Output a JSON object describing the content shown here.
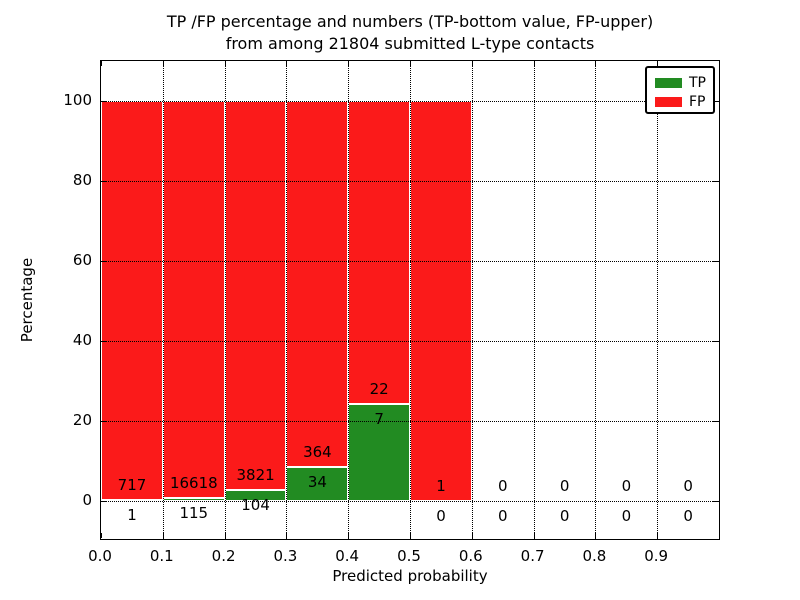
{
  "title": {
    "line1": "TP /FP percentage and numbers (TP-bottom value, FP-upper)",
    "line2": "from among 21804 submitted L-type contacts"
  },
  "axes": {
    "xlabel": "Predicted probability",
    "ylabel": "Percentage",
    "xtick_labels": [
      "0.0",
      "0.1",
      "0.2",
      "0.3",
      "0.4",
      "0.5",
      "0.6",
      "0.7",
      "0.8",
      "0.9"
    ],
    "ytick_labels": [
      "0",
      "20",
      "40",
      "60",
      "80",
      "100"
    ],
    "ytick_values": [
      0,
      20,
      40,
      60,
      80,
      100
    ]
  },
  "legend": {
    "items": [
      {
        "label": "TP",
        "color": "#228b22"
      },
      {
        "label": "FP",
        "color": "#fb1a1a"
      }
    ]
  },
  "chart_data": {
    "type": "bar",
    "stacked": true,
    "title": "TP /FP percentage and numbers (TP-bottom value, FP-upper) from among 21804 submitted L-type contacts",
    "xlabel": "Predicted probability",
    "ylabel": "Percentage",
    "xlim": [
      0.0,
      1.0
    ],
    "ylim": [
      -10,
      110
    ],
    "grid": "dotted",
    "legend_position": "upper right",
    "total_submitted": 21804,
    "bin_width": 0.1,
    "bins": [
      "0.0-0.1",
      "0.1-0.2",
      "0.2-0.3",
      "0.3-0.4",
      "0.4-0.5",
      "0.5-0.6",
      "0.6-0.7",
      "0.7-0.8",
      "0.8-0.9",
      "0.9-1.0"
    ],
    "series": [
      {
        "name": "TP",
        "color": "#228b22",
        "counts": [
          1,
          115,
          104,
          34,
          7,
          0,
          0,
          0,
          0,
          0
        ],
        "percent": [
          0.14,
          0.69,
          2.65,
          8.54,
          24.14,
          0.0,
          0.0,
          0.0,
          0.0,
          0.0
        ]
      },
      {
        "name": "FP",
        "color": "#fb1a1a",
        "counts": [
          717,
          16618,
          3821,
          364,
          22,
          1,
          0,
          0,
          0,
          0
        ],
        "percent": [
          99.86,
          99.31,
          97.35,
          91.46,
          75.86,
          100.0,
          0.0,
          0.0,
          0.0,
          0.0
        ]
      }
    ]
  }
}
